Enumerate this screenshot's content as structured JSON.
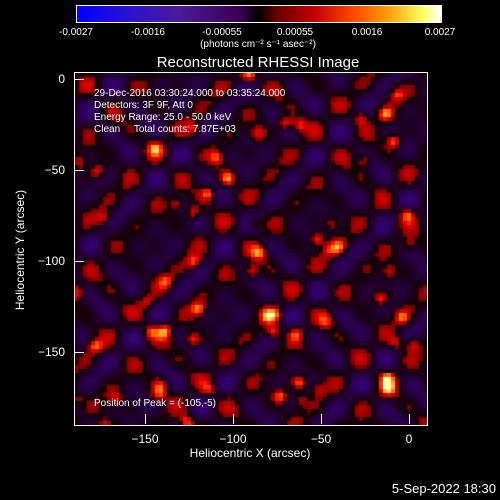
{
  "colorbar": {
    "tick_labels": [
      "-0.0027",
      "-0.0016",
      "-0.00055",
      "0.00055",
      "0.0016",
      "0.0027"
    ],
    "unit_label": "(photons cm⁻² s⁻¹ asec⁻²)"
  },
  "plot": {
    "title": "Reconstructed RHESSI Image",
    "xlabel": "Heliocentric X (arcsec)",
    "ylabel": "Heliocentric Y (arcsec)",
    "x_ticks": [
      "−150",
      "−100",
      "−50",
      "0"
    ],
    "y_ticks": [
      "0",
      "−50",
      "−100",
      "−150"
    ]
  },
  "info": {
    "line1": "29-Dec-2016 03:30:24.000 to 03:35:24.000",
    "line2": "Detectors: 3F 9F, Att 0",
    "line3": "Energy Range: 25.0 - 50.0 keV",
    "line4": "Clean     Total counts: 7.87E+03",
    "peak": "Position of Peak = (-105,-5)"
  },
  "footer": {
    "timestamp": "5-Sep-2022 18:30"
  }
}
